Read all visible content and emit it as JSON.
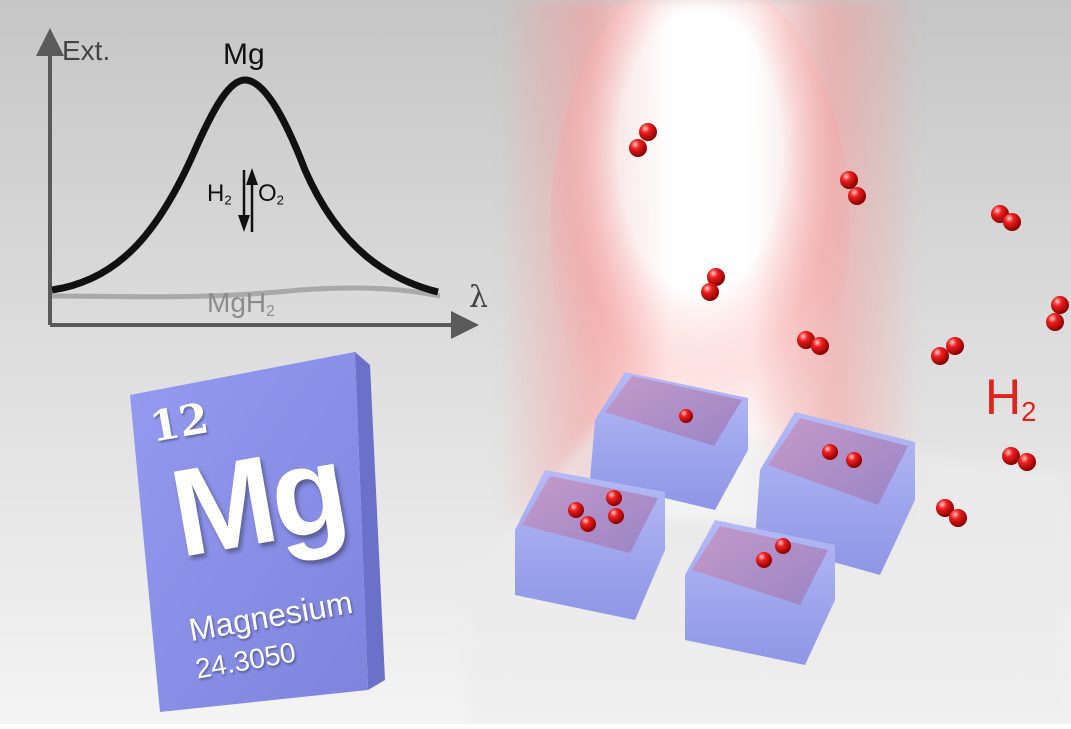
{
  "graph": {
    "y_axis_label": "Ext.",
    "x_axis_label": "λ",
    "peak_label": "Mg",
    "hydride_label_main": "MgH",
    "hydride_label_sub": "2",
    "switch_left_main": "H",
    "switch_left_sub": "2",
    "switch_right_main": "O",
    "switch_right_sub": "2"
  },
  "element_tile": {
    "atomic_number": "12",
    "symbol": "Mg",
    "name": "Magnesium",
    "atomic_mass": "24.3050",
    "color": "#8a8fe6"
  },
  "gas_label": {
    "main": "H",
    "sub": "2",
    "color": "#e0231e"
  },
  "colors": {
    "mg_curve": "#111111",
    "mgh2_curve": "#aaaaaa",
    "axis": "#5a5a5a",
    "molecule": "#e01a1a",
    "nanoblock_side": "#9ea6ee",
    "nanoblock_top": "#b38fbf",
    "light_beam": "#ff9a9a"
  }
}
